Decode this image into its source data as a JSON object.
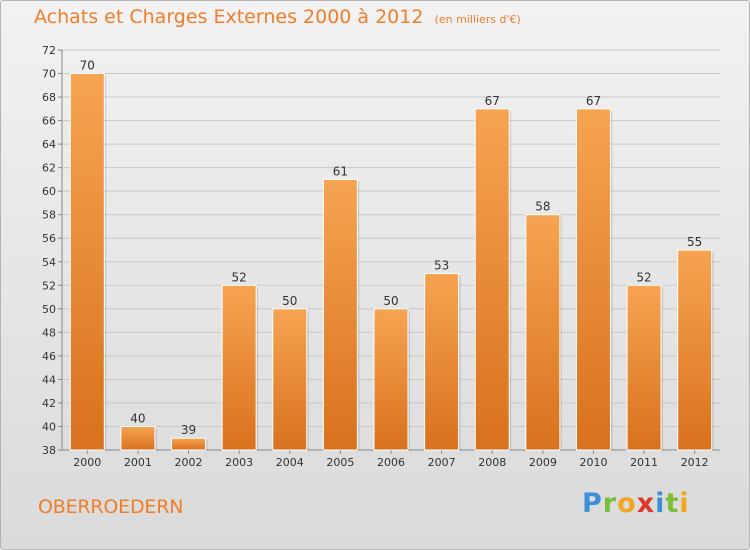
{
  "page": {
    "title": "Achats et Charges Externes 2000 à 2012",
    "subtitle": "(en milliers d'€)",
    "commune": "OBERROEDERN",
    "logo_letters": [
      {
        "char": "P",
        "color": "#3d8fd8"
      },
      {
        "char": "r",
        "color": "#7bbf34"
      },
      {
        "char": "o",
        "color": "#f2a51f"
      },
      {
        "char": "x",
        "color": "#e0352b"
      },
      {
        "char": "i",
        "color": "#3d8fd8"
      },
      {
        "char": "t",
        "color": "#7bbf34"
      },
      {
        "char": "i",
        "color": "#f2a51f"
      }
    ]
  },
  "colors": {
    "accent": "#f07d28",
    "bar_top": "#f6a452",
    "bar_bottom": "#d9711d",
    "grid": "#c8c8c8",
    "axis_text": "#333333"
  },
  "chart_data": {
    "type": "bar",
    "title": "Achats et Charges Externes 2000 à 2012",
    "subtitle": "(en milliers d'€)",
    "categories": [
      "2000",
      "2001",
      "2002",
      "2003",
      "2004",
      "2005",
      "2006",
      "2007",
      "2008",
      "2009",
      "2010",
      "2011",
      "2012"
    ],
    "values": [
      70,
      40,
      39,
      52,
      50,
      61,
      50,
      53,
      67,
      58,
      67,
      52,
      55
    ],
    "data_labels": [
      "70",
      "40",
      "39",
      "52",
      "50",
      "61",
      "50",
      "53",
      "67",
      "58",
      "67",
      "52",
      "55"
    ],
    "ylim": [
      38,
      72
    ],
    "yticks": [
      38,
      40,
      42,
      44,
      46,
      48,
      50,
      52,
      54,
      56,
      58,
      60,
      62,
      64,
      66,
      68,
      70,
      72
    ],
    "xlabel": "",
    "ylabel": "",
    "grid": true,
    "legend": "none"
  }
}
